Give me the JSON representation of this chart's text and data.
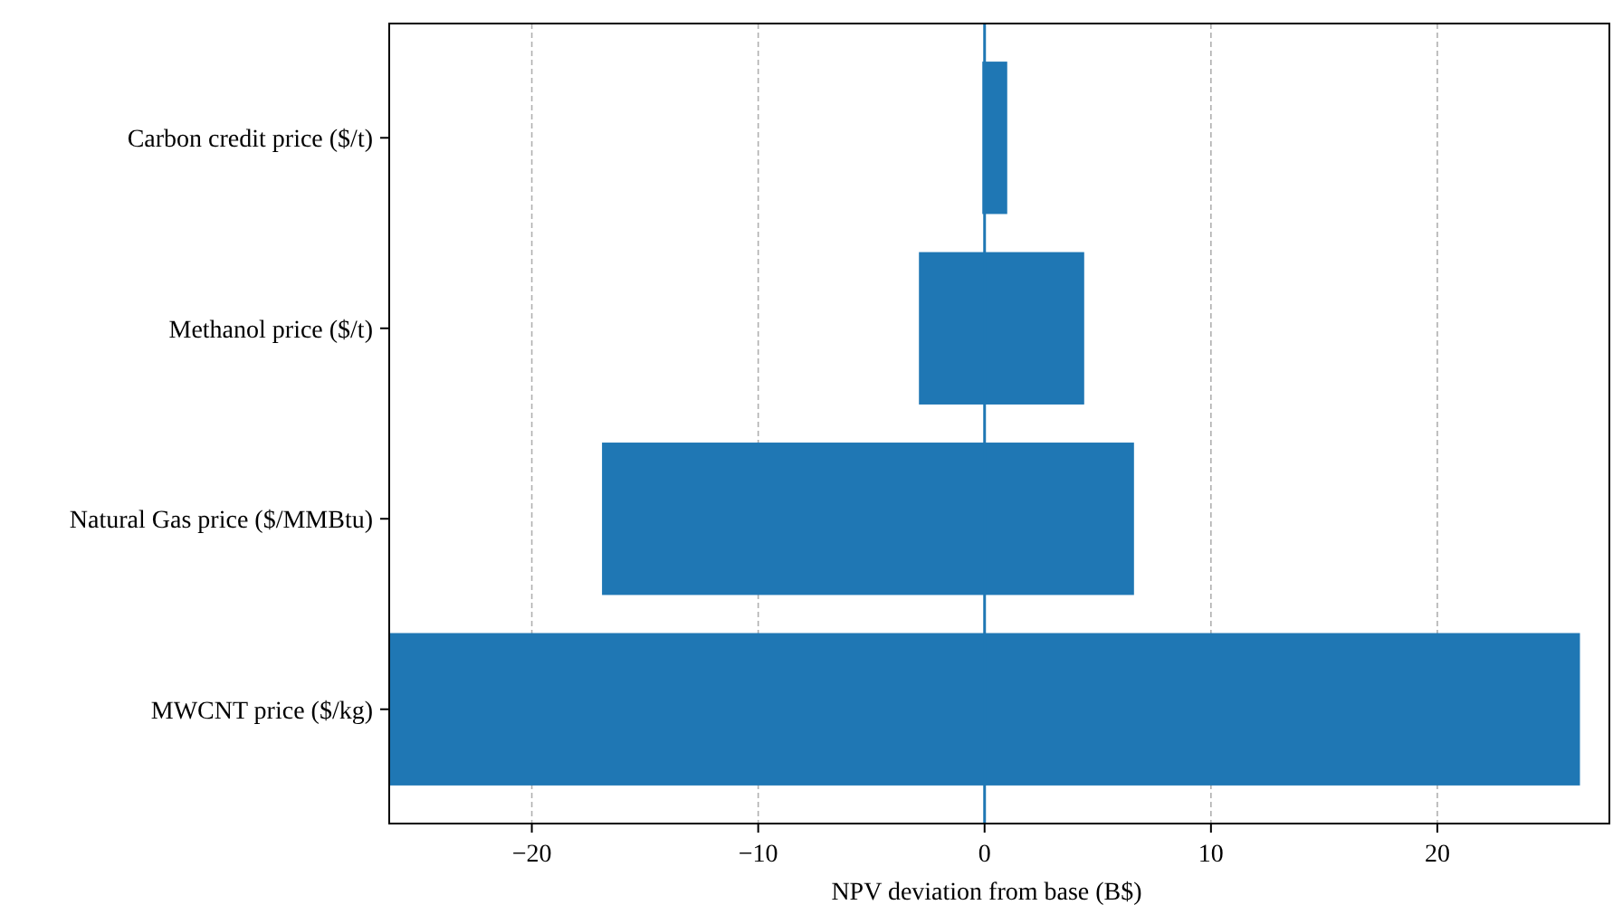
{
  "chart_data": {
    "type": "bar",
    "orientation": "horizontal",
    "xlabel": "NPV deviation from base (B$)",
    "categories": [
      "Carbon credit price ($/t)",
      "Methanol price ($/t)",
      "Natural Gas price ($/MMBtu)",
      "MWCNT price ($/kg)"
    ],
    "base": [
      -0.1,
      -2.9,
      -16.9,
      -26.3
    ],
    "values": [
      1.1,
      7.3,
      23.5,
      52.6
    ],
    "color": "#1f77b4",
    "xlim": [
      -26.3,
      27.6
    ],
    "xticks": [
      {
        "value": -20,
        "label": "−20"
      },
      {
        "value": -10,
        "label": "−10"
      },
      0,
      10,
      20
    ],
    "grid": "x",
    "ref_lines": [
      {
        "axis": "x",
        "value": 0,
        "color": "#1f77b4"
      }
    ]
  }
}
